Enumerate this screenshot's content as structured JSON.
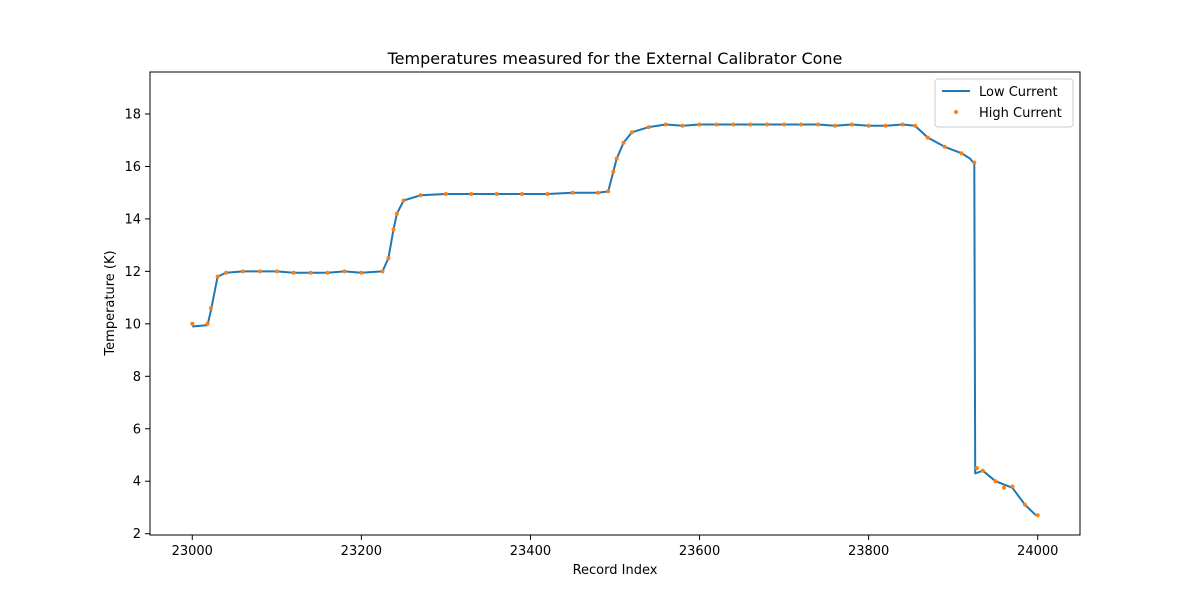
{
  "chart_data": {
    "type": "line",
    "title": "Temperatures measured for the External Calibrator Cone",
    "xlabel": "Record Index",
    "ylabel": "Temperature (K)",
    "xlim": [
      22950,
      24050
    ],
    "ylim": [
      1.95,
      19.6
    ],
    "xticks": [
      23000,
      23200,
      23400,
      23600,
      23800,
      24000
    ],
    "yticks": [
      2,
      4,
      6,
      8,
      10,
      12,
      14,
      16,
      18
    ],
    "grid": false,
    "legend_position": "top-right",
    "series": [
      {
        "name": "Low Current",
        "style": "line",
        "color": "#1f77b4",
        "x": [
          23000,
          23018,
          23022,
          23030,
          23040,
          23060,
          23080,
          23100,
          23120,
          23140,
          23160,
          23180,
          23200,
          23225,
          23232,
          23238,
          23242,
          23250,
          23270,
          23300,
          23330,
          23360,
          23390,
          23420,
          23450,
          23480,
          23492,
          23498,
          23502,
          23510,
          23520,
          23540,
          23560,
          23580,
          23600,
          23620,
          23640,
          23660,
          23680,
          23700,
          23720,
          23740,
          23760,
          23780,
          23800,
          23820,
          23840,
          23855,
          23870,
          23890,
          23910,
          23920,
          23925,
          23926,
          23935,
          23950,
          23970,
          23985,
          23998
        ],
        "y": [
          9.9,
          9.95,
          10.5,
          11.8,
          11.95,
          12.0,
          12.0,
          12.0,
          11.95,
          11.95,
          11.95,
          12.0,
          11.95,
          12.0,
          12.5,
          13.6,
          14.2,
          14.7,
          14.9,
          14.95,
          14.95,
          14.95,
          14.95,
          14.95,
          15.0,
          15.0,
          15.05,
          15.8,
          16.3,
          16.9,
          17.3,
          17.5,
          17.6,
          17.55,
          17.6,
          17.6,
          17.6,
          17.6,
          17.6,
          17.6,
          17.6,
          17.6,
          17.55,
          17.6,
          17.55,
          17.55,
          17.6,
          17.55,
          17.1,
          16.75,
          16.5,
          16.3,
          16.1,
          4.3,
          4.4,
          4.0,
          3.75,
          3.1,
          2.7
        ]
      },
      {
        "name": "High Current",
        "style": "scatter",
        "color": "#ff7f0e",
        "x": [
          23000,
          23018,
          23022,
          23030,
          23040,
          23060,
          23080,
          23100,
          23120,
          23140,
          23160,
          23180,
          23200,
          23225,
          23232,
          23238,
          23242,
          23250,
          23270,
          23300,
          23330,
          23360,
          23390,
          23420,
          23450,
          23480,
          23492,
          23498,
          23502,
          23510,
          23520,
          23540,
          23560,
          23580,
          23600,
          23620,
          23640,
          23660,
          23680,
          23700,
          23720,
          23740,
          23760,
          23780,
          23800,
          23820,
          23840,
          23855,
          23870,
          23890,
          23910,
          23925,
          23928,
          23935,
          23950,
          23960,
          23970,
          23985,
          24000
        ],
        "y": [
          10.0,
          10.0,
          10.6,
          11.8,
          11.95,
          12.0,
          12.0,
          12.0,
          11.95,
          11.95,
          11.95,
          12.0,
          11.95,
          12.0,
          12.5,
          13.6,
          14.2,
          14.7,
          14.9,
          14.95,
          14.95,
          14.95,
          14.95,
          14.95,
          15.0,
          15.0,
          15.05,
          15.8,
          16.3,
          16.9,
          17.3,
          17.5,
          17.6,
          17.55,
          17.6,
          17.6,
          17.6,
          17.6,
          17.6,
          17.6,
          17.6,
          17.6,
          17.55,
          17.6,
          17.55,
          17.55,
          17.6,
          17.55,
          17.1,
          16.75,
          16.5,
          16.15,
          4.5,
          4.4,
          4.0,
          3.75,
          3.8,
          3.1,
          2.7
        ]
      }
    ]
  }
}
